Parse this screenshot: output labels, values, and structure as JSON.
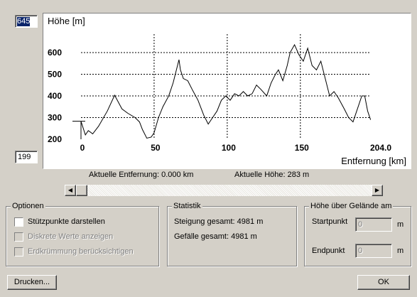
{
  "left_fields": {
    "max": "645",
    "min": "199"
  },
  "chart": {
    "type": "line",
    "title": "Höhe [m]",
    "x_label": "Entfernung [km]",
    "color": "#000000",
    "grid": true,
    "x": [
      0,
      3,
      5,
      8,
      12,
      18,
      23,
      28,
      32,
      37,
      40,
      42,
      45,
      48,
      50,
      53,
      56,
      60,
      63,
      67,
      68,
      70,
      73,
      76,
      80,
      84,
      87,
      90,
      93,
      96,
      99,
      102,
      105,
      108,
      111,
      114,
      117,
      120,
      123,
      127,
      130,
      133,
      135,
      138,
      141,
      143,
      146,
      149,
      152,
      155,
      158,
      161,
      164,
      167,
      170,
      173,
      176,
      180,
      183,
      186,
      189,
      192,
      194,
      196,
      198
    ],
    "values": [
      283,
      220,
      240,
      225,
      260,
      330,
      403,
      340,
      320,
      300,
      280,
      245,
      205,
      210,
      230,
      300,
      350,
      400,
      460,
      567,
      520,
      480,
      470,
      430,
      380,
      310,
      270,
      300,
      330,
      380,
      400,
      380,
      410,
      400,
      420,
      400,
      410,
      450,
      430,
      400,
      460,
      500,
      520,
      470,
      540,
      600,
      636,
      590,
      560,
      620,
      540,
      520,
      560,
      480,
      400,
      420,
      390,
      340,
      300,
      280,
      340,
      400,
      400,
      330,
      290
    ],
    "xlim": [
      0,
      204
    ],
    "ylim": [
      200,
      685
    ],
    "xticks": [
      0,
      50,
      100,
      150,
      {
        "value": 204,
        "label": "204.0"
      }
    ],
    "yticks": [
      200,
      300,
      400,
      500,
      600
    ]
  },
  "status": {
    "distance": "Aktuelle Entfernung: 0.000 km",
    "height": "Aktuelle Höhe: 283 m"
  },
  "options": {
    "title": "Optionen",
    "items": [
      "Stützpunkte darstellen",
      "Diskrete Werte anzeigen",
      "Erdkrümmung berücksichtigen"
    ]
  },
  "statistics": {
    "title": "Statistik",
    "ascent": "Steigung gesamt: 4981 m",
    "descent": "Gefälle gesamt: 4981 m"
  },
  "height_above": {
    "title": "Höhe über Gelände am",
    "start_label": "Startpunkt",
    "start_value": "0",
    "end_label": "Endpunkt",
    "end_value": "0",
    "unit": "m"
  },
  "buttons": {
    "print": "Drucken...",
    "ok": "OK"
  }
}
